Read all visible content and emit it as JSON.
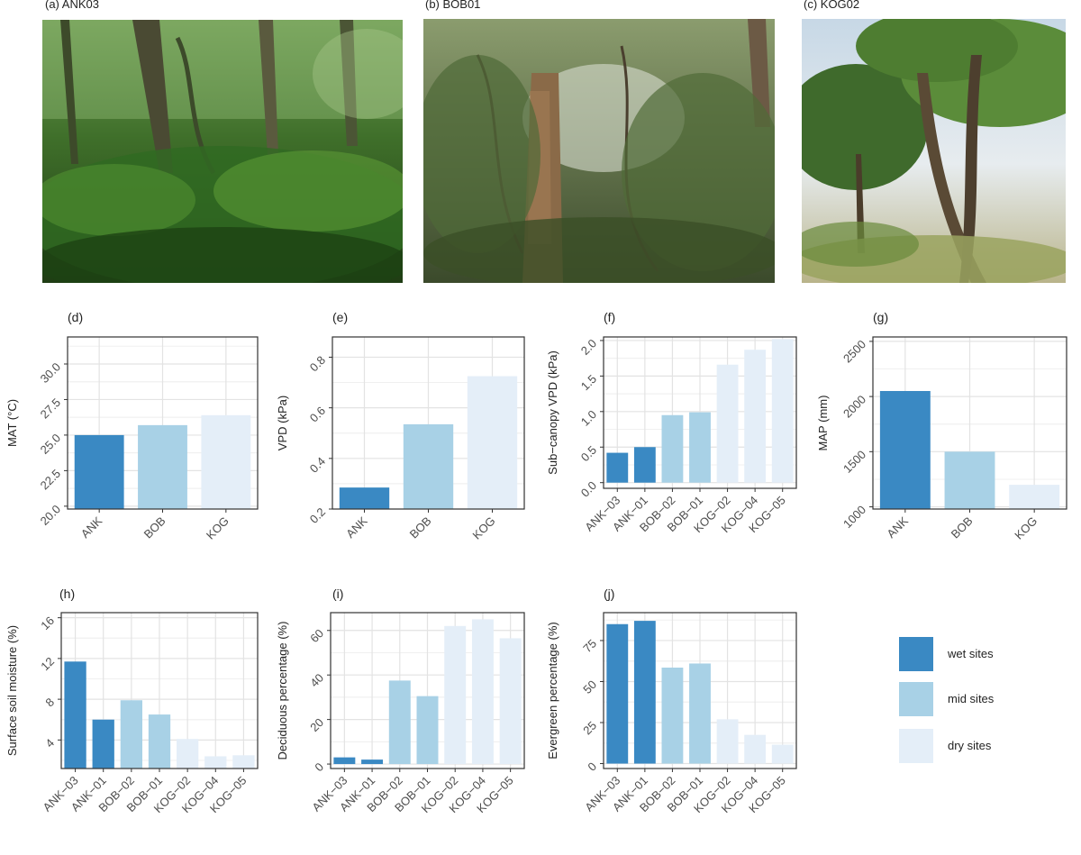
{
  "photos": [
    {
      "label": "(a) ANK03",
      "scene": "dense-wet-forest"
    },
    {
      "label": "(b) BOB01",
      "scene": "mid-forest"
    },
    {
      "label": "(c) KOG02",
      "scene": "dry-open-forest"
    }
  ],
  "colors": {
    "wet": "#3a89c3",
    "mid": "#a8d1e6",
    "dry": "#e4eef8"
  },
  "legend": [
    {
      "label": "wet sites",
      "group": "wet"
    },
    {
      "label": "mid sites",
      "group": "mid"
    },
    {
      "label": "dry sites",
      "group": "dry"
    }
  ],
  "chart_data": [
    {
      "panel": "(d)",
      "type": "bar",
      "ylabel": "MAT (°C)",
      "categories": [
        "ANK",
        "BOB",
        "KOG"
      ],
      "groups": [
        "wet",
        "mid",
        "dry"
      ],
      "values": [
        25.0,
        25.7,
        26.4
      ],
      "ylim": [
        19.8,
        31.9
      ],
      "yticks": [
        "20.0",
        "22.5",
        "25.0",
        "27.5",
        "30.0"
      ],
      "ytick_values": [
        20,
        22.5,
        25,
        27.5,
        30
      ],
      "grid": true
    },
    {
      "panel": "(e)",
      "type": "bar",
      "ylabel": "VPD (kPa)",
      "categories": [
        "ANK",
        "BOB",
        "KOG"
      ],
      "groups": [
        "wet",
        "mid",
        "dry"
      ],
      "values": [
        0.285,
        0.535,
        0.725
      ],
      "ylim": [
        0.2,
        0.88
      ],
      "yticks": [
        "0.2",
        "0.4",
        "0.6",
        "0.8"
      ],
      "ytick_values": [
        0.2,
        0.4,
        0.6,
        0.8
      ],
      "grid": true
    },
    {
      "panel": "(f)",
      "type": "bar",
      "ylabel": "Sub−canopy VPD (kPa)",
      "categories": [
        "ANK−03",
        "ANK−01",
        "BOB−02",
        "BOB−01",
        "KOG−02",
        "KOG−04",
        "KOG−05"
      ],
      "groups": [
        "wet",
        "wet",
        "mid",
        "mid",
        "dry",
        "dry",
        "dry"
      ],
      "values": [
        0.42,
        0.5,
        0.95,
        0.99,
        1.66,
        1.87,
        2.02
      ],
      "ylim": [
        -0.08,
        2.05
      ],
      "yticks": [
        "0.0",
        "0.5",
        "1.0",
        "1.5",
        "2.0"
      ],
      "ytick_values": [
        0,
        0.5,
        1,
        1.5,
        2
      ],
      "grid": true
    },
    {
      "panel": "(g)",
      "type": "bar",
      "ylabel": "MAP (mm)",
      "categories": [
        "ANK",
        "BOB",
        "KOG"
      ],
      "groups": [
        "wet",
        "mid",
        "dry"
      ],
      "values": [
        2050,
        1500,
        1200
      ],
      "ylim": [
        980,
        2540
      ],
      "yticks": [
        "1000",
        "1500",
        "2000",
        "2500"
      ],
      "ytick_values": [
        1000,
        1500,
        2000,
        2500
      ],
      "grid": true
    },
    {
      "panel": "(h)",
      "type": "bar",
      "ylabel": "Surface soil moisture (%)",
      "categories": [
        "ANK−03",
        "ANK−01",
        "BOB−02",
        "BOB−01",
        "KOG−02",
        "KOG−04",
        "KOG−05"
      ],
      "groups": [
        "wet",
        "wet",
        "mid",
        "mid",
        "dry",
        "dry",
        "dry"
      ],
      "values": [
        11.7,
        6.0,
        7.9,
        6.5,
        4.1,
        2.4,
        2.5
      ],
      "ylim": [
        1.2,
        16.5
      ],
      "yticks": [
        "4",
        "8",
        "12",
        "16"
      ],
      "ytick_values": [
        4,
        8,
        12,
        16
      ],
      "grid": true
    },
    {
      "panel": "(i)",
      "type": "bar",
      "ylabel": "Deciduous percentage (%)",
      "categories": [
        "ANK−03",
        "ANK−01",
        "BOB−02",
        "BOB−01",
        "KOG−02",
        "KOG−04",
        "KOG−05"
      ],
      "groups": [
        "wet",
        "wet",
        "mid",
        "mid",
        "dry",
        "dry",
        "dry"
      ],
      "values": [
        3,
        2,
        37.5,
        30.5,
        62,
        65,
        56.5
      ],
      "ylim": [
        -2,
        68
      ],
      "yticks": [
        "0",
        "20",
        "40",
        "60"
      ],
      "ytick_values": [
        0,
        20,
        40,
        60
      ],
      "grid": true
    },
    {
      "panel": "(j)",
      "type": "bar",
      "ylabel": "Evergreen percentage (%)",
      "categories": [
        "ANK−03",
        "ANK−01",
        "BOB−02",
        "BOB−01",
        "KOG−02",
        "KOG−04",
        "KOG−05"
      ],
      "groups": [
        "wet",
        "wet",
        "mid",
        "mid",
        "dry",
        "dry",
        "dry"
      ],
      "values": [
        85,
        87,
        58.5,
        61,
        27,
        17.5,
        11.5
      ],
      "ylim": [
        -3,
        92
      ],
      "yticks": [
        "0",
        "25",
        "50",
        "75"
      ],
      "ytick_values": [
        0,
        25,
        50,
        75
      ],
      "grid": true
    }
  ]
}
